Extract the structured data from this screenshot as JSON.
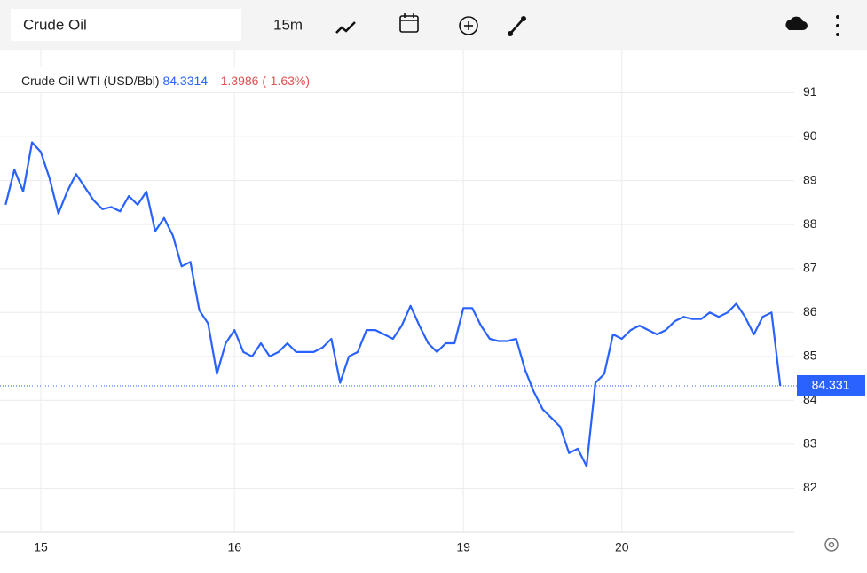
{
  "toolbar": {
    "symbol": "Crude Oil",
    "interval": "15m"
  },
  "chart_data": {
    "type": "line",
    "title": "Crude Oil WTI (USD/Bbl)",
    "last": 84.3314,
    "change": "-1.3986 (-1.63%)",
    "last_price": 84.331,
    "color": "#2962ff",
    "grid": true,
    "categories": [
      null,
      null,
      null,
      null,
      "15",
      null,
      null,
      null,
      null,
      null,
      null,
      null,
      null,
      null,
      null,
      null,
      null,
      null,
      null,
      null,
      null,
      null,
      null,
      null,
      null,
      null,
      "16",
      null,
      null,
      null,
      null,
      null,
      null,
      null,
      null,
      null,
      null,
      null,
      null,
      null,
      null,
      null,
      null,
      null,
      null,
      null,
      null,
      null,
      null,
      null,
      null,
      null,
      "19",
      null,
      null,
      null,
      null,
      null,
      null,
      null,
      null,
      null,
      null,
      null,
      null,
      null,
      null,
      null,
      null,
      null,
      "20",
      null,
      null,
      null,
      null,
      null,
      null,
      null,
      null,
      null,
      null,
      null,
      null,
      null,
      null,
      null,
      null,
      null,
      null
    ],
    "values": [
      88.45,
      89.25,
      88.75,
      89.87,
      89.65,
      89.05,
      88.25,
      88.75,
      89.15,
      88.85,
      88.55,
      88.35,
      88.4,
      88.3,
      88.65,
      88.45,
      88.75,
      87.85,
      88.15,
      87.75,
      87.05,
      87.15,
      86.05,
      85.75,
      84.6,
      85.3,
      85.6,
      85.1,
      85.0,
      85.3,
      85.0,
      85.1,
      85.3,
      85.1,
      85.1,
      85.1,
      85.2,
      85.4,
      84.4,
      85.0,
      85.1,
      85.6,
      85.6,
      85.5,
      85.4,
      85.7,
      86.15,
      85.7,
      85.3,
      85.1,
      85.3,
      85.3,
      86.1,
      86.1,
      85.7,
      85.4,
      85.35,
      85.35,
      85.4,
      84.7,
      84.2,
      83.8,
      83.6,
      83.4,
      82.8,
      82.9,
      82.5,
      84.4,
      84.6,
      85.5,
      85.4,
      85.6,
      85.7,
      85.6,
      85.5,
      85.6,
      85.8,
      85.9,
      85.85,
      85.85,
      86.0,
      85.9,
      86.0,
      86.2,
      85.9,
      85.5,
      85.9,
      86.0,
      84.33
    ],
    "ylim": [
      81,
      92
    ],
    "yticks": [
      82,
      83,
      84,
      85,
      86,
      87,
      88,
      89,
      90,
      91
    ]
  }
}
